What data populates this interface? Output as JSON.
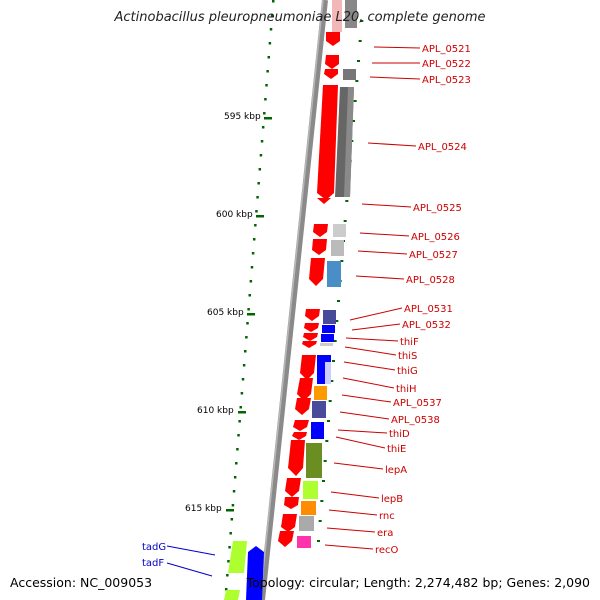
{
  "title": "Actinobacillus pleuropneumoniae L20, complete genome",
  "accession_text": "Accession: NC_009053",
  "summary_text": "Topology: circular; Length: 2,274,482 bp; Genes: 2,090",
  "ticks": [
    "595 kbp",
    "600 kbp",
    "605 kbp",
    "610 kbp",
    "615 kbp"
  ],
  "right_labels": [
    "APL_0521",
    "APL_0522",
    "APL_0523",
    "APL_0524",
    "APL_0525",
    "APL_0526",
    "APL_0527",
    "APL_0528",
    "APL_0531",
    "APL_0532",
    "thiF",
    "thiS",
    "thiG",
    "thiH",
    "APL_0537",
    "APL_0538",
    "thiD",
    "thiE",
    "lepA",
    "lepB",
    "rnc",
    "era",
    "recO"
  ],
  "left_labels": [
    "tadG",
    "tadF"
  ],
  "colors": {
    "forward_strand": "#ff0000",
    "reverse_strand": "#0000ff",
    "label_red": "#cc0000",
    "label_blue": "#0000cc",
    "tick_green": "#006600",
    "backbone": "#888888"
  }
}
